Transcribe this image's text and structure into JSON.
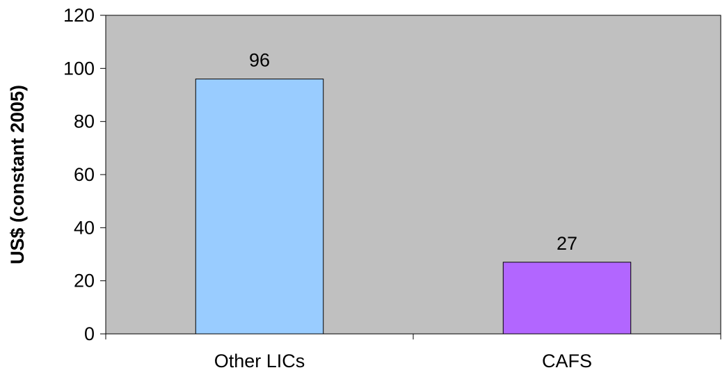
{
  "chart_data": {
    "type": "bar",
    "title": "",
    "xlabel": "",
    "ylabel": "US$ (constant 2005)",
    "categories": [
      "Other LICs",
      "CAFS"
    ],
    "values": [
      96,
      27
    ],
    "data_labels": [
      "96",
      "27"
    ],
    "bar_colors": [
      "#99ccff",
      "#b266ff"
    ],
    "plot_background": "#c0c0c0",
    "ylim": [
      0,
      120
    ],
    "yticks": [
      0,
      20,
      40,
      60,
      80,
      100,
      120
    ],
    "ytick_labels": [
      "0",
      "20",
      "40",
      "60",
      "80",
      "100",
      "120"
    ],
    "grid": false,
    "legend": "none"
  }
}
